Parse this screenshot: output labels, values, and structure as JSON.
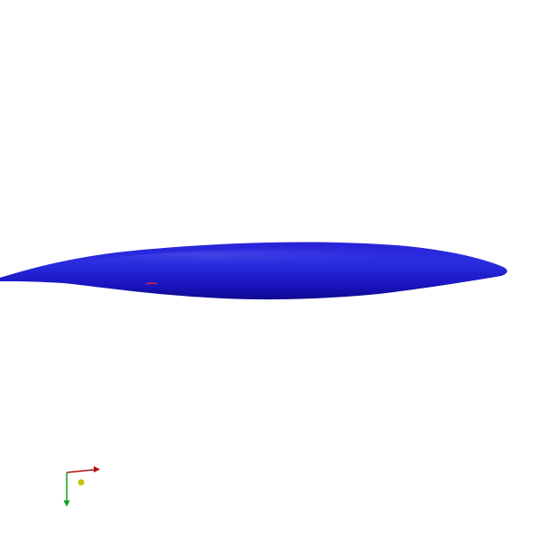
{
  "viewer": {
    "background_color": "#ffffff",
    "object": {
      "shape": "elongated-ellipsoid",
      "color": "#1a0fc8",
      "highlight_color": "#3a3ae6",
      "shadow_color": "#0e0a8e"
    },
    "surface_mark": {
      "color": "#e0204a"
    },
    "axes_triad": {
      "x_axis_color": "#b01010",
      "y_axis_color": "#10a020",
      "z_axis_color": "#c8c010"
    }
  }
}
